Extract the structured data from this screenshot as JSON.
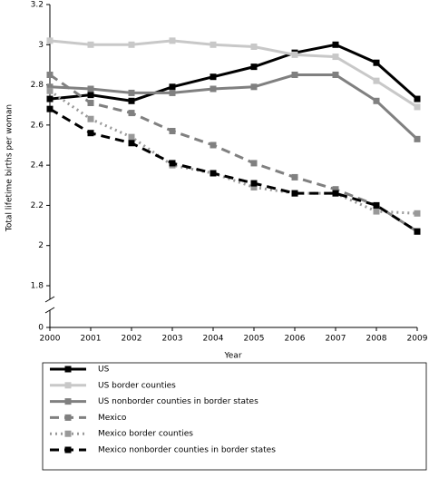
{
  "chart_data": {
    "type": "line",
    "x_label": "Year",
    "y_label": "Total lifetime births per woman",
    "x": [
      2000,
      2001,
      2002,
      2003,
      2004,
      2005,
      2006,
      2007,
      2008,
      2009
    ],
    "xlim": [
      2000,
      2009
    ],
    "xticks": [
      2000,
      2001,
      2002,
      2003,
      2004,
      2005,
      2006,
      2007,
      2008,
      2009
    ],
    "ylim": [
      0,
      3.2
    ],
    "yticks": [
      0,
      1.8,
      2.0,
      2.2,
      2.4,
      2.6,
      2.8,
      3.0,
      3.2
    ],
    "axis_break": true,
    "legend": "bottom",
    "series": [
      {
        "name": "US",
        "color": "#000000",
        "dash": "solid",
        "values": [
          2.73,
          2.75,
          2.72,
          2.79,
          2.84,
          2.89,
          2.96,
          3.0,
          2.91,
          2.73
        ]
      },
      {
        "name": "US border counties",
        "color": "#c8c8c8",
        "dash": "solid",
        "values": [
          3.02,
          3.0,
          3.0,
          3.02,
          3.0,
          2.99,
          2.95,
          2.94,
          2.82,
          2.69
        ]
      },
      {
        "name": "US nonborder counties in border states",
        "color": "#808080",
        "dash": "solid",
        "values": [
          2.79,
          2.78,
          2.76,
          2.76,
          2.78,
          2.79,
          2.85,
          2.85,
          2.72,
          2.53
        ]
      },
      {
        "name": "Mexico",
        "color": "#808080",
        "dash": "dashed",
        "values": [
          2.85,
          2.71,
          2.66,
          2.57,
          2.5,
          2.41,
          2.34,
          2.28,
          2.2,
          2.07
        ]
      },
      {
        "name": "Mexico border counties",
        "color": "#999999",
        "dash": "dotted",
        "values": [
          2.77,
          2.63,
          2.54,
          2.4,
          2.36,
          2.29,
          2.26,
          2.26,
          2.17,
          2.16
        ]
      },
      {
        "name": "Mexico nonborder counties in border states",
        "color": "#000000",
        "dash": "dashed",
        "values": [
          2.68,
          2.56,
          2.51,
          2.41,
          2.36,
          2.31,
          2.26,
          2.26,
          2.2,
          2.07
        ]
      }
    ]
  }
}
